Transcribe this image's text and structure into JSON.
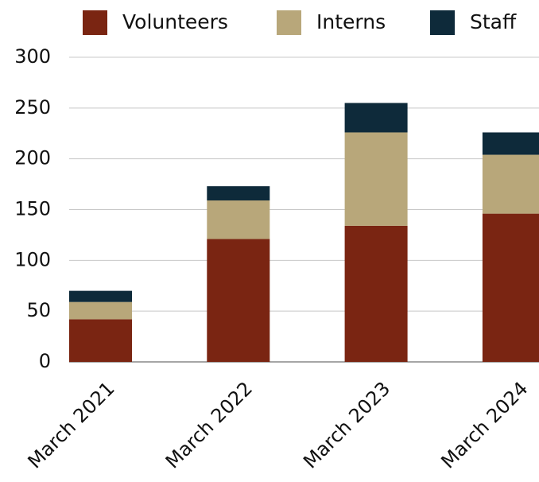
{
  "chart_data": {
    "type": "stacked_bar",
    "categories": [
      "March 2021",
      "March 2022",
      "March 2023",
      "March 2024"
    ],
    "series": [
      {
        "name": "Volunteers",
        "color": "#7a2512",
        "values": [
          42,
          121,
          134,
          146
        ]
      },
      {
        "name": "Interns",
        "color": "#b8a77a",
        "values": [
          17,
          38,
          92,
          58
        ]
      },
      {
        "name": "Staff",
        "color": "#0e2a3a",
        "values": [
          11,
          14,
          29,
          22
        ]
      }
    ],
    "ylim": [
      0,
      300
    ],
    "yticks": [
      0,
      50,
      100,
      150,
      200,
      250,
      300
    ],
    "grid": true,
    "legend": "top"
  }
}
